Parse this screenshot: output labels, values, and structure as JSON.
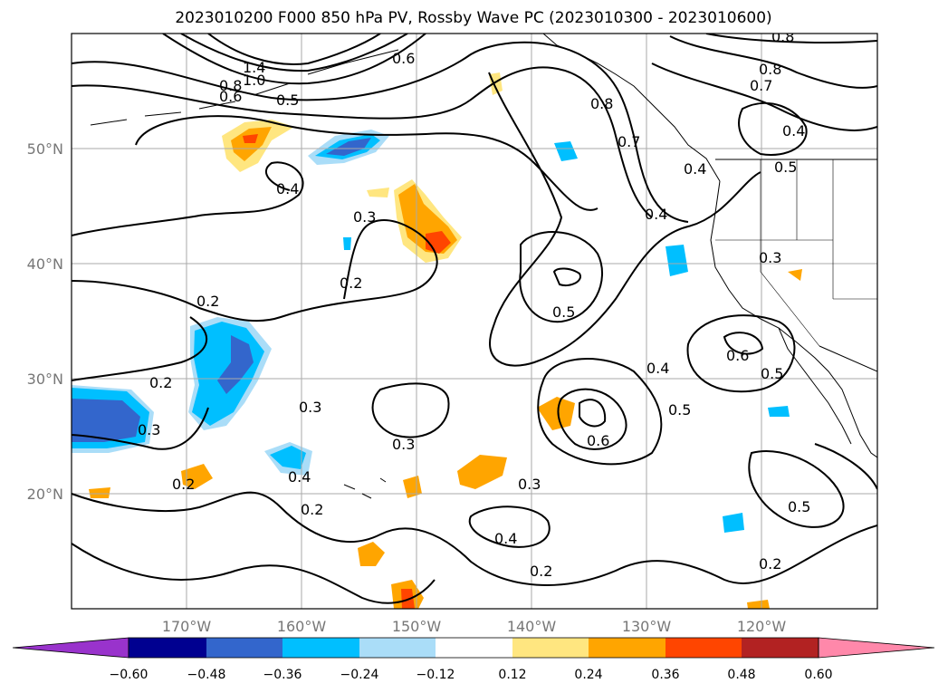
{
  "title": "2023010200 F000 850 hPa PV, Rossby Wave PC (2023010300 - 2023010600)",
  "axes": {
    "lon_ticks": [
      "170°W",
      "160°W",
      "150°W",
      "140°W",
      "130°W",
      "120°W"
    ],
    "lat_ticks": [
      "50°N",
      "40°N",
      "30°N",
      "20°N"
    ]
  },
  "colorbar": {
    "ticks": [
      "−0.60",
      "−0.48",
      "−0.36",
      "−0.24",
      "−0.12",
      "0.12",
      "0.24",
      "0.36",
      "0.48",
      "0.60"
    ],
    "colors": [
      "#9933cc",
      "#000090",
      "#3366cc",
      "#00bfff",
      "#aaddf8",
      "#ffffff",
      "#ffe680",
      "#ffa500",
      "#ff4500",
      "#b22222",
      "#ff88aa"
    ]
  },
  "chart_data": {
    "type": "contour_map",
    "variable": "850 hPa PV",
    "lon_range": [
      -180,
      -110
    ],
    "lat_range": [
      10,
      60
    ],
    "contour_labels": [
      "1.4",
      "1.0",
      "0.8",
      "0.6",
      "0.5",
      "0.6",
      "0.8",
      "0.8",
      "0.7",
      "0.7",
      "0.8",
      "0.4",
      "0.4",
      "0.5",
      "0.4",
      "0.4",
      "0.3",
      "0.2",
      "0.2",
      "0.5",
      "0.4",
      "0.3",
      "0.2",
      "0.3",
      "0.3",
      "0.6",
      "0.5",
      "0.2",
      "0.4",
      "0.2",
      "0.3",
      "0.4",
      "0.2",
      "0.6",
      "0.5",
      "0.5",
      "0.2",
      "0.3"
    ]
  }
}
